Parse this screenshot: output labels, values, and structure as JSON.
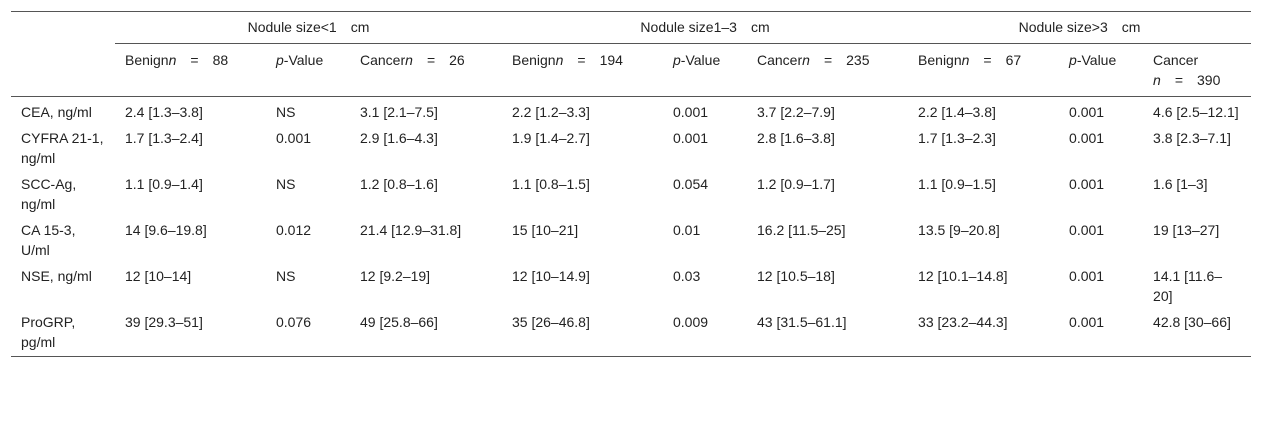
{
  "groups": [
    {
      "label": "Nodule size<1",
      "unit": "cm"
    },
    {
      "label": "Nodule size1–3",
      "unit": "cm"
    },
    {
      "label": "Nodule size>3",
      "unit": "cm"
    }
  ],
  "subheaders": [
    {
      "text": "Benign",
      "n_label": "n",
      "eq": "=",
      "n": "88"
    },
    {
      "p": "p",
      "rest": "-Value"
    },
    {
      "text": "Cancer",
      "n_label": "n",
      "eq": "=",
      "n": "26"
    },
    {
      "text": "Benign",
      "n_label": "n",
      "eq": "=",
      "n": "194"
    },
    {
      "p": "p",
      "rest": "-Value"
    },
    {
      "text": "Cancer",
      "n_label": "n",
      "eq": "=",
      "n": "235"
    },
    {
      "text": "Benign",
      "n_label": "n",
      "eq": "=",
      "n": "67"
    },
    {
      "p": "p",
      "rest": "-Value"
    },
    {
      "text": "Cancer",
      "n_label": "n",
      "eq": "=",
      "n": "390"
    }
  ],
  "rows": [
    {
      "label": "CEA, ng/ml",
      "cells": [
        "2.4 [1.3–3.8]",
        "NS",
        "3.1 [2.1–7.5]",
        "2.2 [1.2–3.3]",
        "0.001",
        "3.7 [2.2–7.9]",
        "2.2 [1.4–3.8]",
        "0.001",
        "4.6 [2.5–12.1]"
      ]
    },
    {
      "label": "CYFRA 21-1, ng/ml",
      "cells": [
        "1.7 [1.3–2.4]",
        "0.001",
        "2.9 [1.6–4.3]",
        "1.9 [1.4–2.7]",
        "0.001",
        "2.8 [1.6–3.8]",
        "1.7 [1.3–2.3]",
        "0.001",
        "3.8 [2.3–7.1]"
      ]
    },
    {
      "label": "SCC-Ag, ng/ml",
      "cells": [
        "1.1 [0.9–1.4]",
        "NS",
        "1.2 [0.8–1.6]",
        "1.1 [0.8–1.5]",
        "0.054",
        "1.2 [0.9–1.7]",
        "1.1 [0.9–1.5]",
        "0.001",
        "1.6 [1–3]"
      ]
    },
    {
      "label": "CA 15-3, U/ml",
      "cells": [
        "14 [9.6–19.8]",
        "0.012",
        "21.4 [12.9–31.8]",
        "15 [10–21]",
        "0.01",
        "16.2 [11.5–25]",
        "13.5 [9–20.8]",
        "0.001",
        "19 [13–27]"
      ]
    },
    {
      "label": "NSE, ng/ml",
      "cells": [
        "12 [10–14]",
        "NS",
        "12 [9.2–19]",
        "12 [10–14.9]",
        "0.03",
        "12 [10.5–18]",
        "12 [10.1–14.8]",
        "0.001",
        "14.1 [11.6–20]"
      ]
    },
    {
      "label": "ProGRP, pg/ml",
      "cells": [
        "39 [29.3–51]",
        "0.076",
        "49 [25.8–66]",
        "35 [26–46.8]",
        "0.009",
        "43 [31.5–61.1]",
        "33 [23.2–44.3]",
        "0.001",
        "42.8 [30–66]"
      ]
    }
  ]
}
